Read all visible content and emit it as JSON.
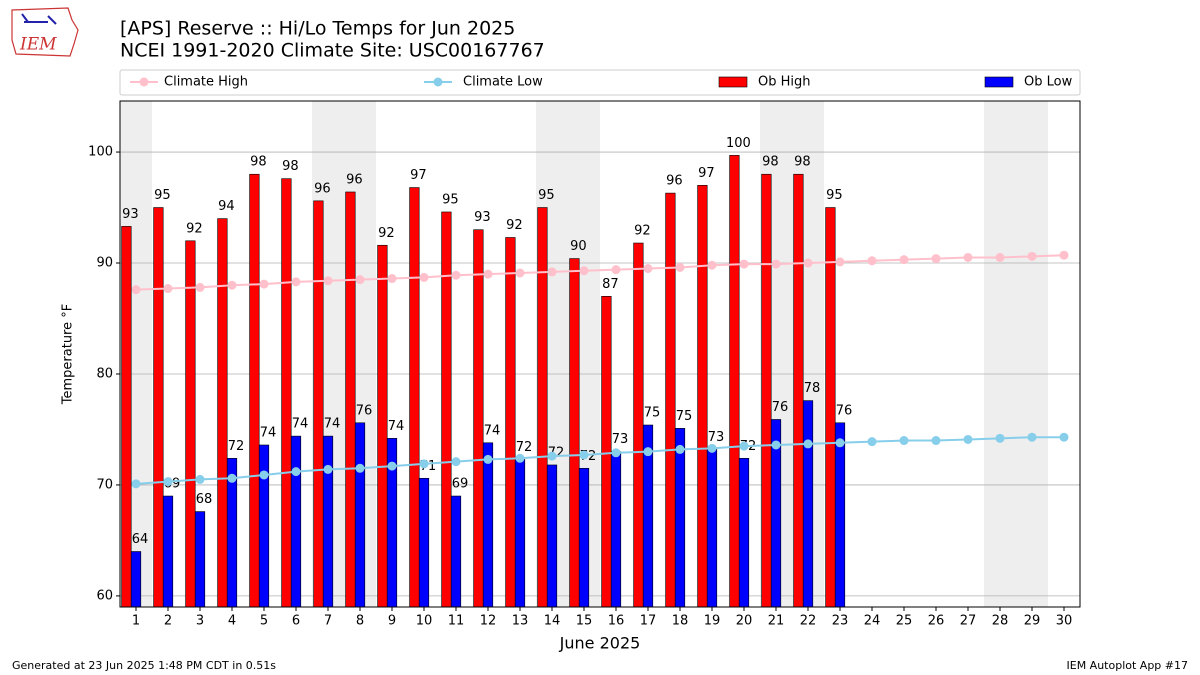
{
  "chart_data": {
    "type": "bar",
    "title": "[APS] Reserve :: Hi/Lo Temps for Jun 2025",
    "subtitle": "NCEI 1991-2020 Climate Site: USC00167767",
    "x_label": "June 2025",
    "y_label": "Temperature °F",
    "footer_left": "Generated at 23 Jun 2025 1:48 PM CDT in 0.51s",
    "footer_right": "IEM Autoplot App #17",
    "logo": "IEM",
    "x": [
      1,
      2,
      3,
      4,
      5,
      6,
      7,
      8,
      9,
      10,
      11,
      12,
      13,
      14,
      15,
      16,
      17,
      18,
      19,
      20,
      21,
      22,
      23,
      24,
      25,
      26,
      27,
      28,
      29,
      30
    ],
    "xlim": [
      0.5,
      30.5
    ],
    "xticks": [
      1,
      2,
      3,
      4,
      5,
      6,
      7,
      8,
      9,
      10,
      11,
      12,
      13,
      14,
      15,
      16,
      17,
      18,
      19,
      20,
      21,
      22,
      23,
      24,
      25,
      26,
      27,
      28,
      29,
      30
    ],
    "ylim": [
      59,
      104.6
    ],
    "yticks": [
      60,
      70,
      80,
      90,
      100
    ],
    "grid": true,
    "shaded_ranges": [
      [
        0.5,
        1.5
      ],
      [
        6.5,
        8.5
      ],
      [
        13.5,
        15.5
      ],
      [
        20.5,
        22.5
      ],
      [
        27.5,
        29.5
      ]
    ],
    "shade_color": "#eeeeee",
    "series": [
      {
        "name": "Climate High",
        "type": "line",
        "color": "#ffc0cb",
        "values": [
          87.6,
          87.7,
          87.8,
          88.0,
          88.1,
          88.3,
          88.4,
          88.5,
          88.6,
          88.7,
          88.9,
          89.0,
          89.1,
          89.2,
          89.3,
          89.4,
          89.5,
          89.6,
          89.8,
          89.9,
          89.9,
          90.0,
          90.1,
          90.2,
          90.3,
          90.4,
          90.5,
          90.5,
          90.6,
          90.7
        ]
      },
      {
        "name": "Climate Low",
        "type": "line",
        "color": "#87ceeb",
        "values": [
          70.1,
          70.3,
          70.5,
          70.6,
          70.9,
          71.2,
          71.4,
          71.5,
          71.7,
          71.9,
          72.1,
          72.3,
          72.4,
          72.6,
          72.7,
          72.9,
          73.0,
          73.2,
          73.3,
          73.5,
          73.6,
          73.7,
          73.8,
          73.9,
          74.0,
          74.0,
          74.1,
          74.2,
          74.3,
          74.3
        ]
      },
      {
        "name": "Ob High",
        "type": "bar",
        "color": "#ff0000",
        "values": [
          93.3,
          95.0,
          92.0,
          94.0,
          98.0,
          97.6,
          95.6,
          96.4,
          91.6,
          96.8,
          94.6,
          93.0,
          92.3,
          95.0,
          90.4,
          87.0,
          91.8,
          96.3,
          97.0,
          99.7,
          98.0,
          98.0,
          95.0,
          null,
          null,
          null,
          null,
          null,
          null,
          null
        ],
        "value_labels": [
          "93",
          "95",
          "92",
          "94",
          "98",
          "98",
          "96",
          "96",
          "92",
          "97",
          "95",
          "93",
          "92",
          "95",
          "90",
          "87",
          "92",
          "96",
          "97",
          "100",
          "98",
          "98",
          "95",
          null,
          null,
          null,
          null,
          null,
          null,
          null
        ]
      },
      {
        "name": "Ob Low",
        "type": "bar",
        "color": "#0000ff",
        "values": [
          64.0,
          69.0,
          67.6,
          72.4,
          73.6,
          74.4,
          74.4,
          75.6,
          74.2,
          70.6,
          69.0,
          73.8,
          72.3,
          71.8,
          71.5,
          73.0,
          75.4,
          75.1,
          73.2,
          72.4,
          75.9,
          77.6,
          75.6,
          null,
          null,
          null,
          null,
          null,
          null,
          null
        ],
        "value_labels": [
          "64",
          "69",
          "68",
          "72",
          "74",
          "74",
          "74",
          "76",
          "74",
          "71",
          "69",
          "74",
          "72",
          "72",
          "72",
          "73",
          "75",
          "75",
          "73",
          "72",
          "76",
          "78",
          "76",
          null,
          null,
          null,
          null,
          null,
          null,
          null
        ]
      }
    ]
  }
}
